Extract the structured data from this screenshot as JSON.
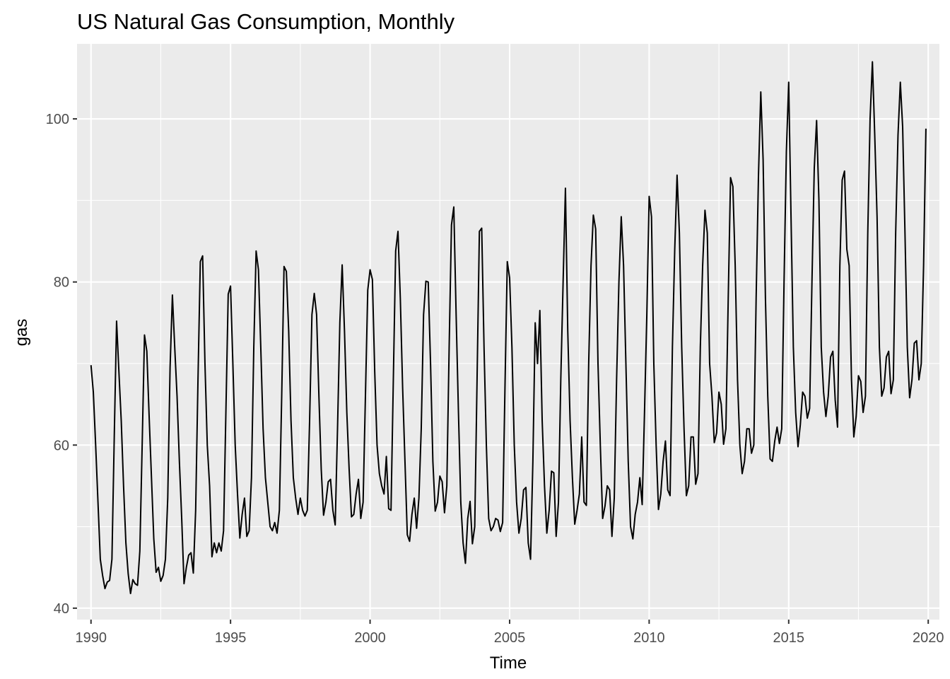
{
  "chart_data": {
    "type": "line",
    "title": "US Natural Gas Consumption, Monthly",
    "xlabel": "Time",
    "ylabel": "gas",
    "xlim": [
      1989.5,
      2020.4
    ],
    "ylim": [
      38.6,
      109.2
    ],
    "x_ticks": [
      1990,
      1995,
      2000,
      2005,
      2010,
      2015,
      2020
    ],
    "x_tick_labels": [
      "1990",
      "1995",
      "2000",
      "2005",
      "2010",
      "2015",
      "2020"
    ],
    "y_ticks": [
      40,
      60,
      80,
      100
    ],
    "y_tick_labels": [
      "40",
      "60",
      "80",
      "100"
    ],
    "grid": true,
    "legend": "none",
    "colors": {
      "panel": "#ebebeb",
      "grid": "#ffffff",
      "line": "#000000",
      "tick_text": "#4d4d4d"
    },
    "series": [
      {
        "x_start": "1990-01",
        "frequency": "monthly",
        "values": [
          69.8,
          66.5,
          60.0,
          53.0,
          46.0,
          44.0,
          42.4,
          43.2,
          43.4,
          46.0,
          61.0,
          75.2,
          69.0,
          63.0,
          55.0,
          48.0,
          44.2,
          41.8,
          43.5,
          43.0,
          42.8,
          47.0,
          60.0,
          73.5,
          71.5,
          63.5,
          56.0,
          48.5,
          44.4,
          45.0,
          43.3,
          44.0,
          46.0,
          53.5,
          69.5,
          78.4,
          72.0,
          66.0,
          58.0,
          51.0,
          43.0,
          45.0,
          46.5,
          46.8,
          44.3,
          52.0,
          68.0,
          82.5,
          83.2,
          70.0,
          60.0,
          55.0,
          46.3,
          48.0,
          46.8,
          48.0,
          47.0,
          49.5,
          64.0,
          78.5,
          79.5,
          70.0,
          60.0,
          54.0,
          48.6,
          51.5,
          53.5,
          48.8,
          49.5,
          56.0,
          72.0,
          83.8,
          81.5,
          72.0,
          62.0,
          56.0,
          53.0,
          50.0,
          49.5,
          50.5,
          49.2,
          52.0,
          66.0,
          81.9,
          81.3,
          74.0,
          63.0,
          56.0,
          53.5,
          51.5,
          53.5,
          52.0,
          51.3,
          52.0,
          63.0,
          76.0,
          78.6,
          76.0,
          66.0,
          57.0,
          51.4,
          53.0,
          55.5,
          55.8,
          52.0,
          50.2,
          62.0,
          75.0,
          82.1,
          74.0,
          64.0,
          57.0,
          51.2,
          51.5,
          54.0,
          55.8,
          51.0,
          53.0,
          66.0,
          79.0,
          81.5,
          80.3,
          69.0,
          60.0,
          56.5,
          55.0,
          54.0,
          58.6,
          52.2,
          52.0,
          68.0,
          83.8,
          86.2,
          78.0,
          67.0,
          58.0,
          49.0,
          48.2,
          51.5,
          53.5,
          49.8,
          53.5,
          62.0,
          76.0,
          80.1,
          80.0,
          70.0,
          58.0,
          51.9,
          53.0,
          56.2,
          55.5,
          51.7,
          55.0,
          72.0,
          87.0,
          89.2,
          76.0,
          64.0,
          53.0,
          48.0,
          45.5,
          51.0,
          53.1,
          47.9,
          50.0,
          68.0,
          86.2,
          86.6,
          72.0,
          60.0,
          51.0,
          49.5,
          50.0,
          51.0,
          50.8,
          49.4,
          50.5,
          67.0,
          82.5,
          80.5,
          72.0,
          60.0,
          53.0,
          49.2,
          51.0,
          54.5,
          54.8,
          48.0,
          46.0,
          58.0,
          75.0,
          70.0,
          76.5,
          63.0,
          55.0,
          49.2,
          52.0,
          56.8,
          56.6,
          48.8,
          53.0,
          68.0,
          80.0,
          91.5,
          74.0,
          63.0,
          56.0,
          50.3,
          52.0,
          54.0,
          61.0,
          53.0,
          52.6,
          70.0,
          82.0,
          88.2,
          86.5,
          70.0,
          60.0,
          51.0,
          52.5,
          55.0,
          54.5,
          48.8,
          53.5,
          68.0,
          80.0,
          88.0,
          82.0,
          70.0,
          58.0,
          50.0,
          48.5,
          51.5,
          53.0,
          56.0,
          52.7,
          64.0,
          76.0,
          90.5,
          88.0,
          70.0,
          60.0,
          52.1,
          54.0,
          58.0,
          60.5,
          54.5,
          53.8,
          72.0,
          84.0,
          93.1,
          86.0,
          72.0,
          62.0,
          53.8,
          55.0,
          61.0,
          61.0,
          55.2,
          56.5,
          72.0,
          82.0,
          88.8,
          86.0,
          70.0,
          66.0,
          60.3,
          61.5,
          66.5,
          65.0,
          60.1,
          62.0,
          78.0,
          92.8,
          91.7,
          82.0,
          68.0,
          60.0,
          56.5,
          58.0,
          62.0,
          62.0,
          59.0,
          60.0,
          78.0,
          93.0,
          103.3,
          95.0,
          78.0,
          66.0,
          58.3,
          58.0,
          60.5,
          62.2,
          60.2,
          62.0,
          80.0,
          96.0,
          104.5,
          88.0,
          72.0,
          64.0,
          59.8,
          62.5,
          66.5,
          66.0,
          63.3,
          64.5,
          80.0,
          94.0,
          99.8,
          90.0,
          72.0,
          66.5,
          63.5,
          66.0,
          70.8,
          71.5,
          65.5,
          62.2,
          82.0,
          92.5,
          93.6,
          84.0,
          82.0,
          68.0,
          61.0,
          63.5,
          68.5,
          67.8,
          64.0,
          66.0,
          86.0,
          100.0,
          107.0,
          98.0,
          88.0,
          72.0,
          66.0,
          67.0,
          70.8,
          71.5,
          66.3,
          68.0,
          86.0,
          98.0,
          104.5,
          99.0,
          86.0,
          72.0,
          65.8,
          68.0,
          72.5,
          72.8,
          68.0,
          70.0,
          82.0,
          98.8
        ]
      }
    ]
  }
}
